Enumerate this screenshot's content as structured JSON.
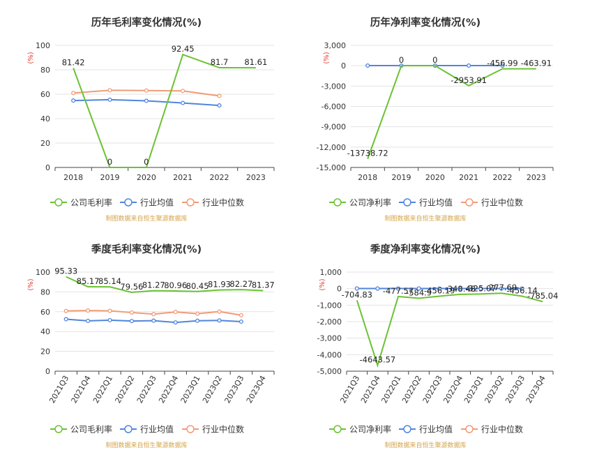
{
  "charts": [
    {
      "title": "历年毛利率变化情况(%)",
      "unit_label": "(%)",
      "source": "制图数据来自恒生聚源数据库",
      "chart_data": {
        "type": "line",
        "categories": [
          "2018",
          "2019",
          "2020",
          "2021",
          "2022",
          "2023"
        ],
        "ylim": [
          0,
          100
        ],
        "yticks": [
          0,
          20,
          40,
          60,
          80,
          100
        ],
        "ytick_labels": [
          "0",
          "20",
          "40",
          "60",
          "80",
          "100"
        ],
        "series": [
          {
            "name": "公司毛利率",
            "color": "#6bc234",
            "show_dots": false,
            "values": [
              81.42,
              0,
              0,
              92.45,
              81.7,
              81.61
            ],
            "labels": [
              "81.42",
              "0",
              "0",
              "92.45",
              "81.7",
              "81.61"
            ]
          },
          {
            "name": "行业均值",
            "color": "#4f86de",
            "show_dots": true,
            "values": [
              54.8,
              55.5,
              54.6,
              52.8,
              50.8,
              null
            ],
            "labels": []
          },
          {
            "name": "行业中位数",
            "color": "#f29b76",
            "show_dots": true,
            "values": [
              61.0,
              63.2,
              63.0,
              62.7,
              58.6,
              null
            ],
            "labels": []
          }
        ]
      }
    },
    {
      "title": "历年净利率变化情况(%)",
      "unit_label": "(%)",
      "source": "制图数据来自恒生聚源数据库",
      "chart_data": {
        "type": "line",
        "categories": [
          "2018",
          "2019",
          "2020",
          "2021",
          "2022",
          "2023"
        ],
        "ylim": [
          -15000,
          3000
        ],
        "yticks": [
          -15000,
          -12000,
          -9000,
          -6000,
          -3000,
          0,
          3000
        ],
        "ytick_labels": [
          "-15,000",
          "-12,000",
          "-9,000",
          "-6,000",
          "-3,000",
          "0",
          "3,000"
        ],
        "series": [
          {
            "name": "公司净利率",
            "color": "#6bc234",
            "show_dots": false,
            "values": [
              -13738.72,
              0,
              0,
              -2953.91,
              -456.99,
              -463.91
            ],
            "labels": [
              "-13738.72",
              "0",
              "0",
              "-2953.91",
              "-456.99",
              "-463.91"
            ]
          },
          {
            "name": "行业均值",
            "color": "#4f86de",
            "show_dots": true,
            "values": [
              15,
              15,
              15,
              15,
              15,
              null
            ],
            "labels": []
          },
          {
            "name": "行业中位数",
            "color": "#f29b76",
            "show_dots": true,
            "values": [
              15,
              15,
              15,
              15,
              15,
              null
            ],
            "labels": []
          }
        ]
      }
    },
    {
      "title": "季度毛利率变化情况(%)",
      "unit_label": "(%)",
      "source": "制图数据来自恒生聚源数据库",
      "chart_data": {
        "type": "line",
        "categories": [
          "2021Q3",
          "2021Q4",
          "2022Q1",
          "2022Q2",
          "2022Q3",
          "2022Q4",
          "2023Q1",
          "2023Q2",
          "2023Q3",
          "2023Q4"
        ],
        "ylim": [
          0,
          100
        ],
        "yticks": [
          0,
          20,
          40,
          60,
          80,
          100
        ],
        "ytick_labels": [
          "0",
          "20",
          "40",
          "60",
          "80",
          "100"
        ],
        "series": [
          {
            "name": "公司毛利率",
            "color": "#6bc234",
            "show_dots": false,
            "values": [
              95.33,
              85.17,
              85.14,
              79.56,
              81.27,
              80.96,
              80.45,
              81.93,
              82.27,
              81.37
            ],
            "labels": [
              "95.33",
              "85.17",
              "85.14",
              "79.56",
              "81.27",
              "80.96",
              "80.45",
              "81.93",
              "82.27",
              "81.37"
            ]
          },
          {
            "name": "行业均值",
            "color": "#4f86de",
            "show_dots": true,
            "values": [
              52.5,
              50.8,
              51.5,
              50.6,
              51.0,
              49.2,
              50.9,
              51.2,
              50.0,
              null
            ],
            "labels": []
          },
          {
            "name": "行业中位数",
            "color": "#f29b76",
            "show_dots": true,
            "values": [
              60.8,
              61.2,
              60.9,
              59.2,
              57.6,
              59.8,
              58.0,
              60.2,
              56.5,
              null
            ],
            "labels": []
          }
        ]
      }
    },
    {
      "title": "季度净利率变化情况(%)",
      "unit_label": "(%)",
      "source": "制图数据来自恒生聚源数据库",
      "chart_data": {
        "type": "line",
        "categories": [
          "2021Q3",
          "2021Q4",
          "2022Q1",
          "2022Q2",
          "2022Q3",
          "2022Q4",
          "2023Q1",
          "2023Q2",
          "2023Q3",
          "2023Q4"
        ],
        "ylim": [
          -5000,
          1000
        ],
        "yticks": [
          -5000,
          -4000,
          -3000,
          -2000,
          -1000,
          0,
          1000
        ],
        "ytick_labels": [
          "-5,000",
          "-4,000",
          "-3,000",
          "-2,000",
          "-1,000",
          "0",
          "1,000"
        ],
        "series": [
          {
            "name": "公司净利率",
            "color": "#6bc234",
            "show_dots": false,
            "values": [
              -704.83,
              -4643.57,
              -477.57,
              -584.9,
              -456.19,
              -348.48,
              -325.07,
              -277.69,
              -456.14,
              -785.04
            ],
            "labels": [
              "-704.83",
              "-4643.57",
              "-477.57",
              "-584.9",
              "-456.19",
              "-348.48",
              "-325.07",
              "-277.69",
              "-456.14",
              "-785.04"
            ]
          },
          {
            "name": "行业均值",
            "color": "#4f86de",
            "show_dots": true,
            "values": [
              5,
              5,
              5,
              5,
              5,
              5,
              5,
              5,
              5,
              null
            ],
            "labels": []
          },
          {
            "name": "行业中位数",
            "color": "#f29b76",
            "show_dots": true,
            "values": [
              5,
              5,
              5,
              5,
              5,
              5,
              5,
              5,
              5,
              null
            ],
            "labels": []
          }
        ]
      }
    }
  ]
}
